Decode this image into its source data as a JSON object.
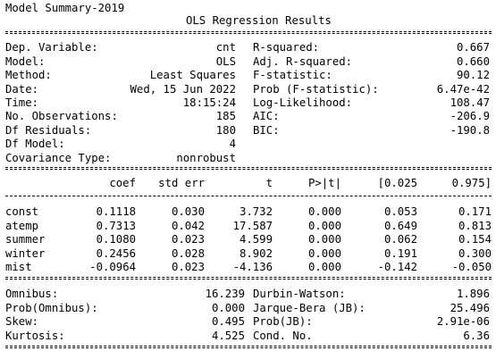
{
  "header": {
    "caption": "Model Summary-2019",
    "title": "OLS Regression Results"
  },
  "top_left": [
    {
      "label": "Dep. Variable:",
      "value": "cnt"
    },
    {
      "label": "Model:",
      "value": "OLS"
    },
    {
      "label": "Method:",
      "value": "Least Squares"
    },
    {
      "label": "Date:",
      "value": "Wed, 15 Jun 2022"
    },
    {
      "label": "Time:",
      "value": "18:15:24"
    },
    {
      "label": "No. Observations:",
      "value": "185"
    },
    {
      "label": "Df Residuals:",
      "value": "180"
    },
    {
      "label": "Df Model:",
      "value": "4"
    },
    {
      "label": "Covariance Type:",
      "value": "nonrobust"
    }
  ],
  "top_right": [
    {
      "label": "R-squared:",
      "value": "0.667"
    },
    {
      "label": "Adj. R-squared:",
      "value": "0.660"
    },
    {
      "label": "F-statistic:",
      "value": "90.12"
    },
    {
      "label": "Prob (F-statistic):",
      "value": "6.47e-42"
    },
    {
      "label": "Log-Likelihood:",
      "value": "108.47"
    },
    {
      "label": "AIC:",
      "value": "-206.9"
    },
    {
      "label": "BIC:",
      "value": "-190.8"
    }
  ],
  "coef_table": {
    "headers": [
      "coef",
      "std err",
      "t",
      "P>|t|",
      "[0.025",
      "0.975]"
    ],
    "rows": [
      {
        "name": "const",
        "cells": [
          "0.1118",
          "0.030",
          "3.732",
          "0.000",
          "0.053",
          "0.171"
        ]
      },
      {
        "name": "atemp",
        "cells": [
          "0.7313",
          "0.042",
          "17.587",
          "0.000",
          "0.649",
          "0.813"
        ]
      },
      {
        "name": "summer",
        "cells": [
          "0.1080",
          "0.023",
          "4.599",
          "0.000",
          "0.062",
          "0.154"
        ]
      },
      {
        "name": "winter",
        "cells": [
          "0.2456",
          "0.028",
          "8.902",
          "0.000",
          "0.191",
          "0.300"
        ]
      },
      {
        "name": "mist",
        "cells": [
          "-0.0964",
          "0.023",
          "-4.136",
          "0.000",
          "-0.142",
          "-0.050"
        ]
      }
    ]
  },
  "bottom_left": [
    {
      "label": "Omnibus:",
      "value": "16.239"
    },
    {
      "label": "Prob(Omnibus):",
      "value": "0.000"
    },
    {
      "label": "Skew:",
      "value": "0.495"
    },
    {
      "label": "Kurtosis:",
      "value": "4.525"
    }
  ],
  "bottom_right": [
    {
      "label": "Durbin-Watson:",
      "value": "1.896"
    },
    {
      "label": "Jarque-Bera (JB):",
      "value": "25.496"
    },
    {
      "label": "Prob(JB):",
      "value": "2.91e-06"
    },
    {
      "label": "Cond. No.",
      "value": "6.36"
    }
  ]
}
